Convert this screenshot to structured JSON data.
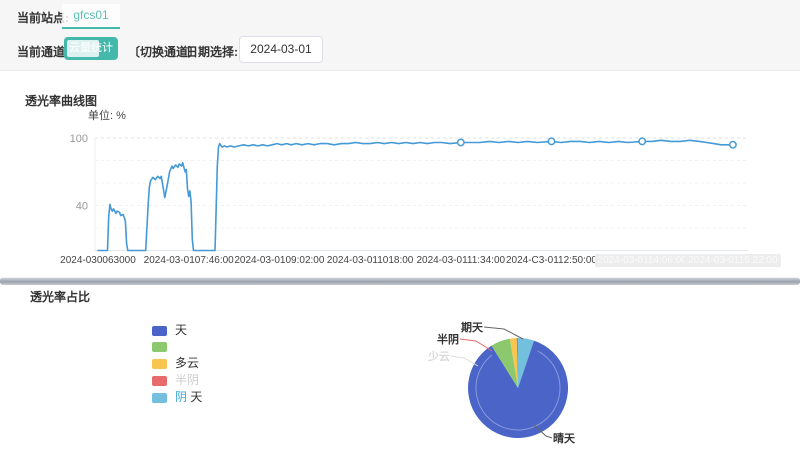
{
  "header": {
    "station_label": "当前站点:",
    "station_value": "gfcs01",
    "channel_label": "当前通道:",
    "channel_button": "云量统计",
    "switch_channel": "〔切换通道〕",
    "date_label": "日期选择:",
    "date_value": "2024-03-01"
  },
  "line_section": {
    "title": "透光率曲线图",
    "unit_label": "单位: %"
  },
  "pie_section": {
    "title": "透光率占比",
    "legend": [
      {
        "label": "天",
        "color": "#4b64c8",
        "faint": false
      },
      {
        "label": "",
        "color": "#8cc86e",
        "faint": false
      },
      {
        "label": "多云",
        "color": "#f6c64f",
        "faint": false
      },
      {
        "label": "半阴",
        "color": "#e96a6a",
        "faint": true
      },
      {
        "label_accent": "阴",
        "label_rest": " 天",
        "color": "#73c0de",
        "faint": false
      }
    ]
  },
  "colors": {
    "accent_teal": "#45b8ac",
    "line_blue": "#4499d6"
  },
  "chart_data": [
    {
      "type": "line",
      "title": "透光率曲线图",
      "ylabel": "%",
      "ylim": [
        0,
        100
      ],
      "grid": true,
      "y_ticks_visible": [
        100,
        40
      ],
      "grid_levels": [
        100,
        80,
        60,
        40,
        20
      ],
      "line_color": "#4499d6",
      "x_tick_minutes": [
        390,
        466,
        542,
        618,
        694,
        770,
        846,
        922
      ],
      "x_tick_labels": [
        "2024-030063000",
        "2024-03-0107:46:00",
        "2024-03-0109:02:00",
        "2024-03-011018:00",
        "2024-03-0111:34:00",
        "2024-C3-0112:50:00",
        "2024-03-0114:06:00",
        "2024-03-0115:22:00"
      ],
      "x_tick_faint": [
        false,
        false,
        false,
        false,
        false,
        false,
        true,
        true
      ],
      "marker_minutes": [
        694,
        770,
        846,
        922
      ],
      "series": [
        [
          390,
          0
        ],
        [
          398,
          0
        ],
        [
          399,
          30
        ],
        [
          400,
          41
        ],
        [
          401,
          37
        ],
        [
          402,
          35
        ],
        [
          403,
          37
        ],
        [
          405,
          33
        ],
        [
          406,
          35
        ],
        [
          408,
          34
        ],
        [
          409,
          31
        ],
        [
          411,
          32
        ],
        [
          412,
          29
        ],
        [
          413,
          26
        ],
        [
          414,
          6
        ],
        [
          415,
          0
        ],
        [
          430,
          0
        ],
        [
          432,
          40
        ],
        [
          433,
          56
        ],
        [
          434,
          62
        ],
        [
          436,
          65
        ],
        [
          438,
          63
        ],
        [
          440,
          66
        ],
        [
          442,
          64
        ],
        [
          443,
          66
        ],
        [
          444,
          60
        ],
        [
          446,
          47
        ],
        [
          448,
          58
        ],
        [
          450,
          70
        ],
        [
          452,
          75
        ],
        [
          453,
          73
        ],
        [
          455,
          76
        ],
        [
          457,
          74
        ],
        [
          458,
          77
        ],
        [
          460,
          75
        ],
        [
          461,
          78
        ],
        [
          462,
          74
        ],
        [
          463,
          70
        ],
        [
          464,
          72
        ],
        [
          465,
          55
        ],
        [
          466,
          48
        ],
        [
          467,
          53
        ],
        [
          468,
          43
        ],
        [
          469,
          10
        ],
        [
          470,
          0
        ],
        [
          488,
          0
        ],
        [
          489,
          35
        ],
        [
          490,
          75
        ],
        [
          491,
          92
        ],
        [
          492,
          95
        ],
        [
          494,
          92
        ],
        [
          496,
          93
        ],
        [
          498,
          92
        ],
        [
          501,
          93
        ],
        [
          504,
          92
        ],
        [
          508,
          93
        ],
        [
          512,
          94
        ],
        [
          516,
          93
        ],
        [
          520,
          94
        ],
        [
          524,
          93
        ],
        [
          528,
          94
        ],
        [
          532,
          93
        ],
        [
          536,
          94
        ],
        [
          540,
          95
        ],
        [
          544,
          94
        ],
        [
          548,
          95
        ],
        [
          552,
          94
        ],
        [
          556,
          95
        ],
        [
          561,
          94
        ],
        [
          566,
          95
        ],
        [
          571,
          94
        ],
        [
          576,
          95
        ],
        [
          582,
          95
        ],
        [
          588,
          94
        ],
        [
          594,
          95
        ],
        [
          600,
          95
        ],
        [
          606,
          96
        ],
        [
          612,
          95
        ],
        [
          618,
          95
        ],
        [
          624,
          96
        ],
        [
          630,
          95
        ],
        [
          636,
          96
        ],
        [
          642,
          95
        ],
        [
          648,
          96
        ],
        [
          654,
          95
        ],
        [
          660,
          96
        ],
        [
          666,
          95
        ],
        [
          672,
          96
        ],
        [
          678,
          96
        ],
        [
          685,
          95
        ],
        [
          694,
          96
        ],
        [
          702,
          96
        ],
        [
          710,
          96
        ],
        [
          718,
          97
        ],
        [
          726,
          96
        ],
        [
          734,
          97
        ],
        [
          742,
          96
        ],
        [
          750,
          97
        ],
        [
          758,
          96
        ],
        [
          770,
          97
        ],
        [
          778,
          96
        ],
        [
          786,
          97
        ],
        [
          794,
          97
        ],
        [
          802,
          96
        ],
        [
          810,
          97
        ],
        [
          818,
          96
        ],
        [
          826,
          97
        ],
        [
          834,
          96
        ],
        [
          846,
          97
        ],
        [
          854,
          97
        ],
        [
          862,
          98
        ],
        [
          870,
          97
        ],
        [
          878,
          97
        ],
        [
          886,
          98
        ],
        [
          894,
          97
        ],
        [
          900,
          96
        ],
        [
          906,
          95
        ],
        [
          912,
          94
        ],
        [
          918,
          94
        ],
        [
          922,
          94
        ]
      ]
    },
    {
      "type": "pie",
      "title": "透光率占比",
      "legend_position": "left",
      "slices": [
        {
          "name": "阴天",
          "callout": "期天",
          "value": 5.2,
          "color": "#73c0de",
          "faint": false
        },
        {
          "name": "晴天",
          "callout": "晴天",
          "value": 85.9,
          "color": "#4b64c8",
          "faint": false
        },
        {
          "name": "少云",
          "callout": "少云",
          "value": 6.3,
          "color": "#8cc86e",
          "faint": true
        },
        {
          "name": "多云",
          "callout": "",
          "value": 2.2,
          "color": "#f6c64f",
          "faint": false
        },
        {
          "name": "半阴",
          "callout": "半阴",
          "value": 0.4,
          "color": "#e96a6a",
          "faint": false
        }
      ]
    }
  ]
}
